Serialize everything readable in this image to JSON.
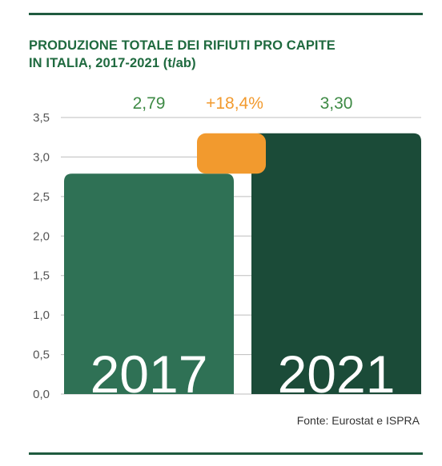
{
  "header": {
    "title_line1": "PRODUZIONE TOTALE DEI RIFIUTI PRO CAPITE",
    "title_line2": "IN ITALIA, 2017-2021 (t/ab)"
  },
  "footer": {
    "source": "Fonte: Eurostat e ISPRA"
  },
  "chart_data": {
    "type": "bar",
    "title": "PRODUZIONE TOTALE DEI RIFIUTI PRO CAPITE IN ITALIA, 2017-2021 (t/ab)",
    "categories": [
      "2017",
      "2021"
    ],
    "values": [
      2.79,
      3.3
    ],
    "value_labels": [
      "2,79",
      "3,30"
    ],
    "change_label": "+18,4%",
    "ylim": [
      0,
      3.5
    ],
    "yticks": [
      0,
      0.5,
      1.0,
      1.5,
      2.0,
      2.5,
      3.0,
      3.5
    ],
    "ytick_labels": [
      "0,0",
      "0,5",
      "1,0",
      "1,5",
      "2,0",
      "2,5",
      "3,0",
      "3,5"
    ],
    "grid": true,
    "legend": "none",
    "colors": {
      "bar_2017": "#2f7155",
      "bar_2021": "#1b4b38",
      "change_badge": "#f29a2e",
      "value_label": "#3e8a45",
      "change_label": "#f29a2e",
      "grid": "#bdbdbd",
      "tick_label": "#555555"
    }
  }
}
